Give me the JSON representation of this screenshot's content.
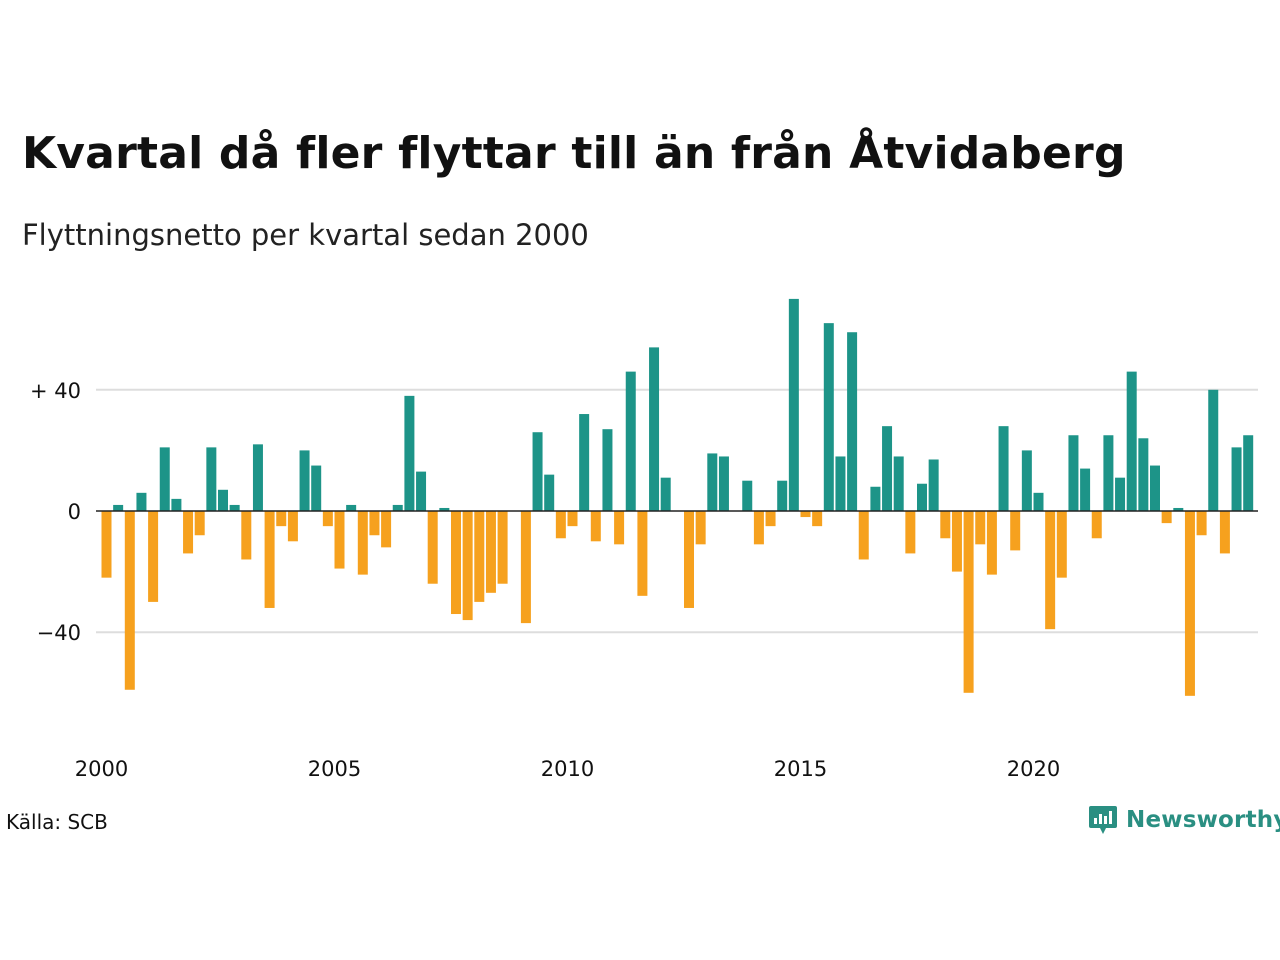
{
  "title": "Kvartal då fler flyttar till än från Åtvidaberg",
  "subtitle": "Flyttningsnetto per kvartal sedan 2000",
  "source": "Källa: SCB",
  "brand": {
    "name": "Newsworthy",
    "icon": "chart-speech-bubble-icon"
  },
  "colors": {
    "positive": "#1d9488",
    "negative": "#f6a11e",
    "grid": "#dddddd",
    "zero": "#222222",
    "brand": "#2a8f82"
  },
  "chart_data": {
    "type": "bar",
    "title": "Kvartal då fler flyttar till än från Åtvidaberg",
    "subtitle": "Flyttningsnetto per kvartal sedan 2000",
    "xlabel": "",
    "ylabel": "",
    "x_start_year": 2000,
    "ylim": [
      -70,
      72
    ],
    "yticks": [
      {
        "value": 40,
        "label": "+ 40"
      },
      {
        "value": 0,
        "label": "0"
      },
      {
        "value": -40,
        "label": "−40"
      }
    ],
    "xticks": [
      {
        "year": 2000,
        "label": "2000"
      },
      {
        "year": 2005,
        "label": "2005"
      },
      {
        "year": 2010,
        "label": "2010"
      },
      {
        "year": 2015,
        "label": "2015"
      },
      {
        "year": 2020,
        "label": "2020"
      }
    ],
    "grid": true,
    "categories": [
      "2000 K1",
      "2000 K2",
      "2000 K3",
      "2000 K4",
      "2001 K1",
      "2001 K2",
      "2001 K3",
      "2001 K4",
      "2002 K1",
      "2002 K2",
      "2002 K3",
      "2002 K4",
      "2003 K1",
      "2003 K2",
      "2003 K3",
      "2003 K4",
      "2004 K1",
      "2004 K2",
      "2004 K3",
      "2004 K4",
      "2005 K1",
      "2005 K2",
      "2005 K3",
      "2005 K4",
      "2006 K1",
      "2006 K2",
      "2006 K3",
      "2006 K4",
      "2007 K1",
      "2007 K2",
      "2007 K3",
      "2007 K4",
      "2008 K1",
      "2008 K2",
      "2008 K3",
      "2008 K4",
      "2009 K1",
      "2009 K2",
      "2009 K3",
      "2009 K4",
      "2010 K1",
      "2010 K2",
      "2010 K3",
      "2010 K4",
      "2011 K1",
      "2011 K2",
      "2011 K3",
      "2011 K4",
      "2012 K1",
      "2012 K2",
      "2012 K3",
      "2012 K4",
      "2013 K1",
      "2013 K2",
      "2013 K3",
      "2013 K4",
      "2014 K1",
      "2014 K2",
      "2014 K3",
      "2014 K4",
      "2015 K1",
      "2015 K2",
      "2015 K3",
      "2015 K4",
      "2016 K1",
      "2016 K2",
      "2016 K3",
      "2016 K4",
      "2017 K1",
      "2017 K2",
      "2017 K3",
      "2017 K4",
      "2018 K1",
      "2018 K2",
      "2018 K3",
      "2018 K4",
      "2019 K1",
      "2019 K2",
      "2019 K3",
      "2019 K4",
      "2020 K1",
      "2020 K2",
      "2020 K3",
      "2020 K4",
      "2021 K1",
      "2021 K2",
      "2021 K3",
      "2021 K4",
      "2022 K1",
      "2022 K2",
      "2022 K3",
      "2022 K4",
      "2023 K1",
      "2023 K2",
      "2023 K3",
      "2023 K4",
      "2024 K1",
      "2024 K2",
      "2024 K3",
      "2024 K4"
    ],
    "values": [
      -22,
      2,
      -59,
      6,
      -30,
      21,
      4,
      -14,
      -8,
      21,
      7,
      2,
      -16,
      22,
      -32,
      -5,
      -10,
      20,
      15,
      -5,
      -19,
      2,
      -21,
      -8,
      -12,
      2,
      38,
      13,
      -24,
      1,
      -34,
      -36,
      -30,
      -27,
      -24,
      0,
      -37,
      26,
      12,
      -9,
      -5,
      32,
      -10,
      27,
      -11,
      46,
      -28,
      54,
      11,
      0,
      -32,
      -11,
      19,
      18,
      0,
      10,
      -11,
      -5,
      10,
      70,
      -2,
      -5,
      62,
      18,
      59,
      -16,
      8,
      28,
      18,
      -14,
      9,
      17,
      -9,
      -20,
      -60,
      -11,
      -21,
      28,
      -13,
      20,
      6,
      -39,
      -22,
      25,
      14,
      -9,
      25,
      11,
      46,
      24,
      15,
      -4,
      1,
      -61,
      -8,
      40,
      -14,
      21,
      25,
      0
    ]
  }
}
